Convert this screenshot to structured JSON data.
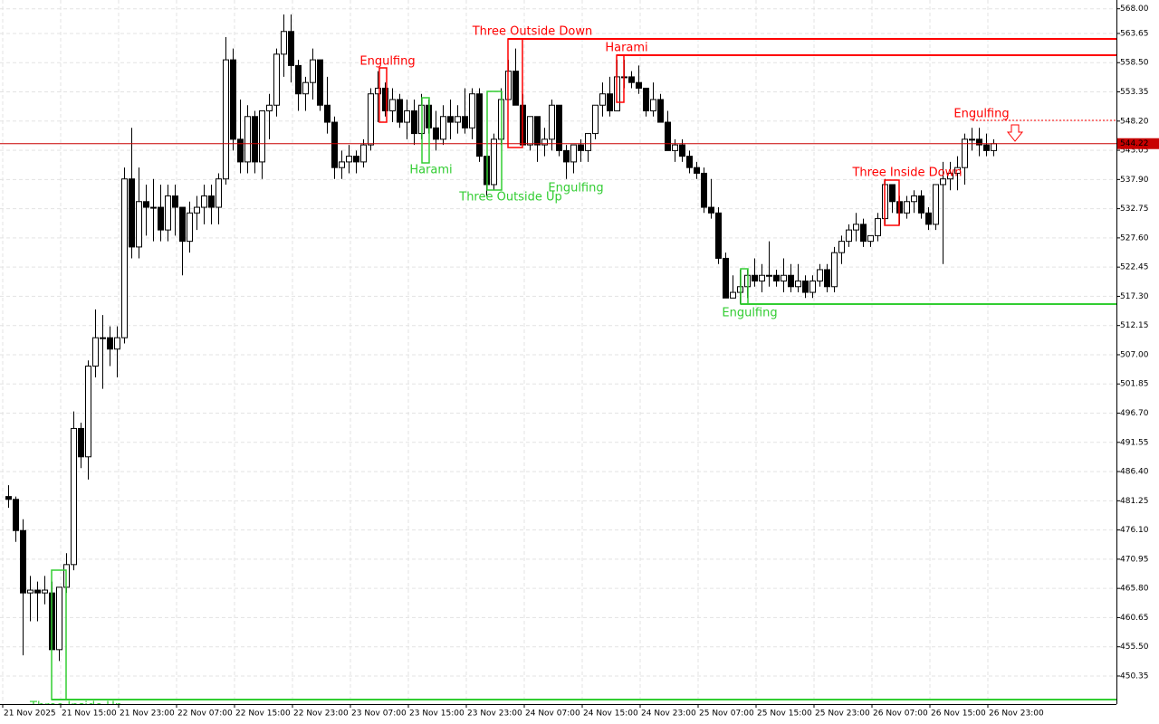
{
  "chart_data": {
    "type": "candlestick",
    "categories": [
      "21 Nov 2025",
      null,
      null,
      null,
      null,
      null,
      null,
      null,
      "21 Nov 15:00",
      null,
      null,
      null,
      null,
      null,
      null,
      null,
      "21 Nov 23:00",
      null,
      null,
      null,
      null,
      null,
      null,
      null,
      "22 Nov 07:00",
      null,
      null,
      null,
      null,
      null,
      null,
      null,
      "22 Nov 15:00",
      null,
      null,
      null,
      null,
      null,
      null,
      null,
      "22 Nov 23:00",
      null,
      null,
      null,
      null,
      null,
      null,
      null,
      "23 Nov 07:00",
      null,
      null,
      null,
      null,
      null,
      null,
      null,
      "23 Nov 15:00",
      null,
      null,
      null,
      null,
      null,
      null,
      null,
      "23 Nov 23:00",
      null,
      null,
      null,
      null,
      null,
      null,
      null,
      "24 Nov 07:00",
      null,
      null,
      null,
      null,
      null,
      null,
      null,
      "24 Nov 15:00",
      null,
      null,
      null,
      null,
      null,
      null,
      null,
      "24 Nov 23:00",
      null,
      null,
      null,
      null,
      null,
      null,
      null,
      "25 Nov 07:00",
      null,
      null,
      null,
      null,
      null,
      null,
      null,
      "25 Nov 15:00",
      null,
      null,
      null,
      null,
      null,
      null,
      null,
      "25 Nov 23:00",
      null,
      null,
      null,
      null,
      null,
      null,
      null,
      "26 Nov 07:00",
      null,
      null,
      null,
      null,
      null,
      null,
      null,
      "26 Nov 15:00",
      null,
      null,
      null,
      null,
      null,
      null,
      null,
      "26 Nov 23:00"
    ],
    "open": [
      482,
      481.5,
      476,
      465,
      465.5,
      465,
      465,
      455,
      466,
      470,
      494,
      489,
      505,
      510,
      510,
      508,
      510,
      538,
      526,
      534,
      533,
      533,
      529,
      535,
      533,
      527,
      532,
      533,
      535,
      533,
      538,
      559,
      545,
      541,
      549,
      541,
      550,
      551,
      560,
      564,
      558,
      553,
      555,
      559,
      551,
      548,
      540,
      541,
      542,
      541,
      544,
      553,
      554,
      550,
      552,
      548,
      550,
      546,
      551,
      547,
      545,
      549,
      548,
      549,
      547,
      553,
      542,
      537,
      545,
      552,
      557,
      551,
      544,
      549,
      544,
      545,
      551,
      543,
      541,
      544,
      543,
      546,
      551,
      553,
      550,
      556,
      556,
      555,
      554,
      550,
      552,
      548,
      543,
      544,
      542,
      540,
      539,
      533,
      532,
      524,
      517,
      518,
      519,
      521,
      520,
      521,
      521,
      520,
      521,
      519,
      520,
      518,
      520,
      522,
      519,
      525,
      527,
      529,
      530,
      527,
      528,
      531,
      537,
      534,
      532,
      534,
      535,
      532,
      530,
      537,
      538,
      539,
      540,
      545,
      545,
      544,
      543
    ],
    "high": [
      484,
      482,
      478,
      468,
      467,
      468,
      467,
      466,
      472,
      497,
      495,
      506,
      515,
      514,
      512,
      512,
      540,
      547,
      540,
      537,
      538,
      537,
      537,
      537,
      533,
      534,
      535,
      537,
      537,
      539,
      563,
      561,
      552,
      551,
      550,
      550,
      553,
      561,
      567,
      567,
      559,
      556,
      561,
      559,
      556,
      549,
      543,
      544,
      543,
      545,
      554,
      557,
      555,
      554,
      553,
      552,
      552,
      553,
      552,
      550,
      551,
      552,
      551,
      554,
      554,
      554,
      542,
      546,
      554,
      559,
      561,
      553,
      549,
      549,
      547,
      552,
      551,
      544,
      544,
      545,
      546,
      551,
      555,
      556,
      559,
      559,
      557,
      558,
      554,
      555,
      553,
      550,
      545,
      545,
      543,
      541,
      540,
      538,
      533,
      525,
      521,
      522,
      522,
      524,
      523,
      527,
      522,
      524,
      523,
      523,
      521,
      521,
      523,
      523,
      526,
      528,
      530,
      532,
      531,
      528,
      532,
      538,
      537,
      535,
      535,
      536,
      536,
      533,
      537,
      541,
      541,
      542,
      546,
      547,
      547,
      546,
      545
    ],
    "low": [
      480,
      474,
      454,
      460,
      460,
      463,
      455,
      453,
      465,
      469,
      487,
      485,
      503,
      501,
      505,
      503,
      509,
      524,
      524,
      528,
      527,
      527,
      527,
      528,
      521,
      525,
      529,
      530,
      530,
      530,
      537,
      543,
      539,
      539,
      539,
      538,
      545,
      549,
      556,
      555,
      550,
      550,
      552,
      550,
      546,
      538,
      538,
      539,
      539,
      540,
      543,
      548,
      549,
      548,
      547,
      545,
      544,
      545,
      546,
      543,
      544,
      545,
      546,
      546,
      545,
      541,
      535,
      536,
      544,
      552,
      551,
      544,
      543,
      541,
      542,
      543,
      542,
      538,
      539,
      541,
      541,
      545,
      549,
      549,
      550,
      554,
      554,
      553,
      549,
      549,
      548,
      543,
      541,
      541,
      539,
      538,
      532,
      531,
      523,
      517,
      517,
      516,
      517,
      519,
      518,
      519,
      519,
      518,
      518,
      518,
      517,
      517,
      519,
      518,
      518,
      523,
      526,
      527,
      526,
      526,
      527,
      530,
      532,
      530,
      531,
      532,
      531,
      529,
      529,
      523,
      536,
      536,
      537,
      543,
      542,
      542,
      542
    ],
    "close": [
      481.5,
      476,
      465,
      465.5,
      465,
      465.5,
      455,
      466,
      470,
      494,
      489,
      505,
      510,
      510,
      508,
      510,
      538,
      526,
      534,
      533,
      533,
      529,
      535,
      533,
      527,
      532,
      533,
      535,
      533,
      538,
      559,
      545,
      541,
      549,
      541,
      550,
      551,
      560,
      564,
      558,
      553,
      555,
      559,
      551,
      548,
      540,
      541,
      542,
      541,
      544,
      553,
      554,
      550,
      552,
      548,
      550,
      546,
      551,
      547,
      545,
      549,
      548,
      549,
      547,
      553,
      542,
      537,
      545,
      552,
      557,
      551,
      544,
      549,
      544,
      545,
      551,
      543,
      541,
      544,
      543,
      546,
      551,
      553,
      550,
      556,
      556,
      555,
      554,
      550,
      552,
      548,
      543,
      544,
      542,
      540,
      539,
      533,
      532,
      524,
      517,
      518,
      519,
      521,
      520,
      521,
      521,
      520,
      521,
      519,
      520,
      518,
      520,
      522,
      519,
      525,
      527,
      529,
      530,
      527,
      528,
      531,
      537,
      534,
      532,
      534,
      535,
      532,
      530,
      537,
      538,
      539,
      540,
      545,
      545,
      544,
      543,
      544.22
    ],
    "ylim": [
      445.4,
      569.55
    ],
    "yticks": [
      {
        "value": 568.0,
        "label": "568.00"
      },
      {
        "value": 563.65,
        "label": "563.65"
      },
      {
        "value": 558.5,
        "label": "558.50"
      },
      {
        "value": 553.35,
        "label": "553.35"
      },
      {
        "value": 548.2,
        "label": "548.20"
      },
      {
        "value": 543.05,
        "label": "543.05"
      },
      {
        "value": 537.9,
        "label": "537.90"
      },
      {
        "value": 532.75,
        "label": "532.75"
      },
      {
        "value": 527.6,
        "label": "527.60"
      },
      {
        "value": 522.45,
        "label": "522.45"
      },
      {
        "value": 517.3,
        "label": "517.30"
      },
      {
        "value": 512.15,
        "label": "512.15"
      },
      {
        "value": 507.0,
        "label": "507.00"
      },
      {
        "value": 501.85,
        "label": "501.85"
      },
      {
        "value": 496.7,
        "label": "496.70"
      },
      {
        "value": 491.55,
        "label": "491.55"
      },
      {
        "value": 486.4,
        "label": "486.40"
      },
      {
        "value": 481.25,
        "label": "481.25"
      },
      {
        "value": 476.1,
        "label": "476.10"
      },
      {
        "value": 470.95,
        "label": "470.95"
      },
      {
        "value": 465.8,
        "label": "465.80"
      },
      {
        "value": 460.65,
        "label": "460.65"
      },
      {
        "value": 455.5,
        "label": "455.50"
      },
      {
        "value": 450.35,
        "label": "450.35"
      }
    ],
    "current_price": 544.22,
    "grid": true,
    "bull_color": "#ffffff",
    "bear_color": "#000000",
    "price_line_color": "#c80000",
    "annotations": [
      {
        "text": "Three Inside Up",
        "color": "#32cd32"
      },
      {
        "text": "Engulfing",
        "color": "#ff0000"
      },
      {
        "text": "Harami",
        "color": "#32cd32"
      },
      {
        "text": "Three Outside Up",
        "color": "#32cd32"
      },
      {
        "text": "Three Outside Down",
        "color": "#ff0000"
      },
      {
        "text": "Harami",
        "color": "#ff0000"
      },
      {
        "text": "Engulfing",
        "color": "#32cd32"
      },
      {
        "text": "Engulfing",
        "color": "#32cd32"
      },
      {
        "text": "Three Inside Down",
        "color": "#ff0000"
      },
      {
        "text": "Engulfing",
        "color": "#ff0000"
      }
    ]
  }
}
